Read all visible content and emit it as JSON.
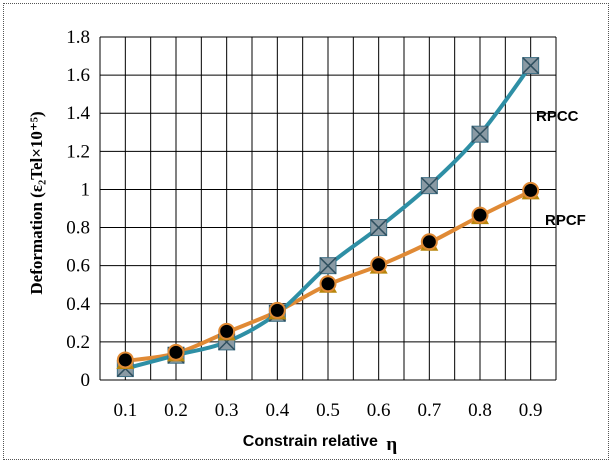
{
  "chart_data": {
    "type": "line",
    "xlabel": "Constrain relative",
    "xlabel_symbol": "η",
    "ylabel": "Deformation (ε₂Tel×10⁺⁵)",
    "x": [
      0.1,
      0.2,
      0.3,
      0.4,
      0.5,
      0.6,
      0.7,
      0.8,
      0.9
    ],
    "x_tick_labels": [
      "0.1",
      "0.2",
      "0.3",
      "0.4",
      "0.5",
      "0.6",
      "0.7",
      "0.8",
      "0.9"
    ],
    "y_ticks": [
      0,
      0.2,
      0.4,
      0.6,
      0.8,
      1,
      1.2,
      1.4,
      1.6,
      1.8
    ],
    "y_tick_labels": [
      "0",
      "0.2",
      "0.4",
      "0.6",
      "0.8",
      "1",
      "1.2",
      "1.4",
      "1.6",
      "1.8"
    ],
    "ylim": [
      0,
      1.8
    ],
    "grid": true,
    "series": [
      {
        "name": "RPCC",
        "values": [
          0.06,
          0.13,
          0.2,
          0.35,
          0.6,
          0.8,
          1.02,
          1.29,
          1.65
        ],
        "line_color": "#2e8fa5",
        "marker": "square-x",
        "marker_color": "#8a9aa4"
      },
      {
        "name": "RPCF",
        "values": [
          0.1,
          0.14,
          0.25,
          0.36,
          0.5,
          0.6,
          0.72,
          0.86,
          0.99
        ],
        "line_color": "#e08a35",
        "marker": "circle-over-triangle",
        "marker_color": "#000000",
        "marker_secondary_color": "#b8860b"
      }
    ]
  }
}
